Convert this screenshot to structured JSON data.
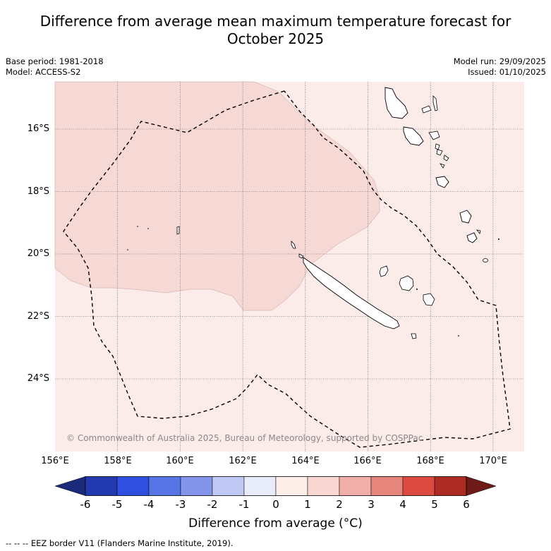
{
  "title_line1": "Difference from average mean maximum temperature forecast for",
  "title_line2": "October 2025",
  "base_period": "Base period: 1981-2018",
  "model": "Model: ACCESS-S2",
  "model_run": "Model run: 29/09/2025",
  "issued": "Issued: 01/10/2025",
  "copyright": "© Commonwealth of Australia 2025, Bureau of Meteorology, supported by COSPPac",
  "latitude_labels": [
    "16°S",
    "18°S",
    "20°S",
    "22°S",
    "24°S"
  ],
  "longitude_labels": [
    "156°E",
    "158°E",
    "160°E",
    "162°E",
    "164°E",
    "166°E",
    "168°E",
    "170°E"
  ],
  "legend": {
    "title": "Difference from average (°C)",
    "tick_labels": [
      "-6",
      "-5",
      "-4",
      "-3",
      "-2",
      "-1",
      "0",
      "1",
      "2",
      "3",
      "4",
      "5",
      "6"
    ],
    "colors": [
      "#1b2a7a",
      "#2339b0",
      "#2f4fe0",
      "#5875e6",
      "#8395ea",
      "#c0c8f4",
      "#e9ecfb",
      "#fdeeea",
      "#f8d6d2",
      "#efaea8",
      "#e6857c",
      "#dd4a3f",
      "#ad2b23",
      "#6e1a18"
    ],
    "map_colors": {
      "anomaly_0_1": "#fbebe9",
      "anomaly_1_2": "#f6d8d5"
    }
  },
  "footer": "--  --  -- EEZ border V11 (Flanders Marine Institute, 2019).",
  "map_regions": [
    "New Caledonia",
    "Vanuatu",
    "Loyalty Islands",
    "Chesterfield Islands"
  ]
}
